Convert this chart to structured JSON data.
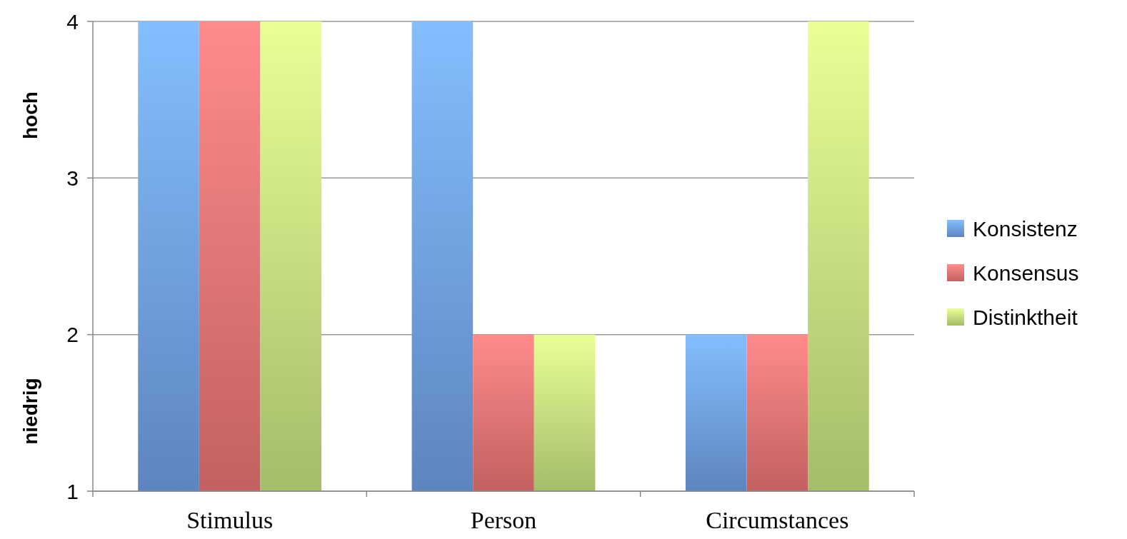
{
  "chart_data": {
    "type": "bar",
    "categories": [
      "Stimulus",
      "Person",
      "Circumstances"
    ],
    "series": [
      {
        "name": "Konsistenz",
        "color": "#6f9fe4",
        "values": [
          4,
          4,
          2
        ]
      },
      {
        "name": "Konsensus",
        "color": "#e87474",
        "values": [
          4,
          2,
          2
        ]
      },
      {
        "name": "Distinktheit",
        "color": "#c3e27e",
        "values": [
          4,
          2,
          4
        ]
      }
    ],
    "ylim": [
      1,
      4
    ],
    "yticks": [
      1,
      2,
      3,
      4
    ],
    "grid": "y",
    "legend": "right",
    "annotations": [
      "hoch",
      "niedrig"
    ]
  }
}
